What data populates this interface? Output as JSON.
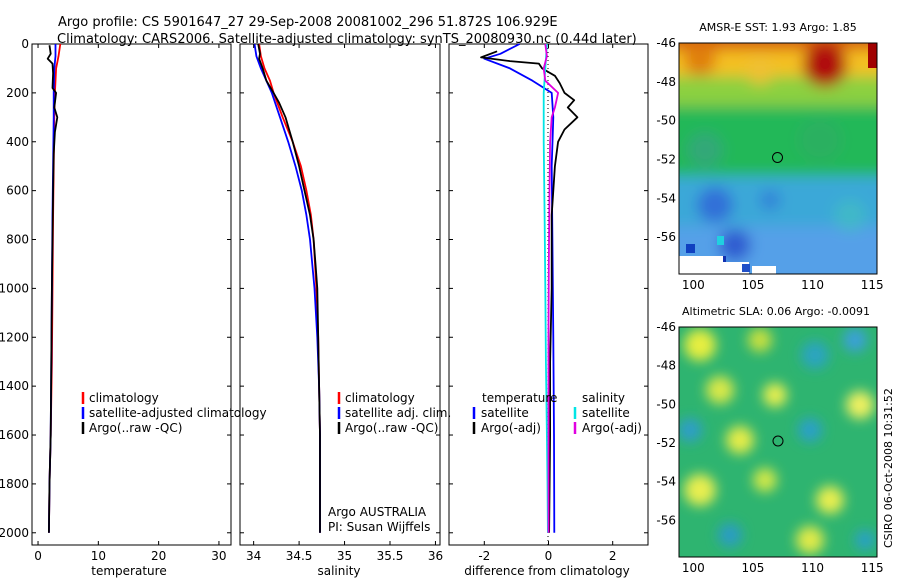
{
  "header": {
    "title_line1": "Argo profile: CS 5901647_27 29-Sep-2008 20081002_296 51.872S 106.929E",
    "title_line2": "Climatology: CARS2006. Satellite-adjusted climatology: synTS_20080930.nc (0.44d later)"
  },
  "side_text": "CSIRO 06-Oct-2008 10:31:52",
  "colors": {
    "climatology": "#ff0000",
    "satellite": "#0000ff",
    "argo": "#000000",
    "satellite_salinity": "#00e5e5",
    "argo_salinity": "#e000e0"
  },
  "chart_data": [
    {
      "type": "line",
      "panel": "temperature",
      "xlabel": "temperature",
      "ylim": [
        2050,
        0
      ],
      "xlim": [
        -1,
        32
      ],
      "xticks": [
        "0",
        "10",
        "20",
        "30"
      ],
      "yticks": [
        "0",
        "200",
        "400",
        "600",
        "800",
        "1000",
        "1200",
        "1400",
        "1600",
        "1800",
        "2000"
      ],
      "legend": [
        "climatology",
        "satellite-adjusted climatology",
        "Argo(..raw -QC)"
      ],
      "series": [
        {
          "name": "climatology",
          "color": "#ff0000",
          "points": [
            [
              3.7,
              0
            ],
            [
              3.4,
              50
            ],
            [
              3.0,
              100
            ],
            [
              2.8,
              200
            ],
            [
              2.7,
              300
            ],
            [
              2.6,
              500
            ],
            [
              2.5,
              700
            ],
            [
              2.4,
              1000
            ],
            [
              2.3,
              1300
            ],
            [
              2.1,
              1600
            ],
            [
              1.9,
              1800
            ],
            [
              1.8,
              2000
            ]
          ]
        },
        {
          "name": "satellite-adjusted climatology",
          "color": "#0000ff",
          "points": [
            [
              2.9,
              0
            ],
            [
              2.9,
              50
            ],
            [
              2.7,
              100
            ],
            [
              2.6,
              200
            ],
            [
              2.6,
              300
            ],
            [
              2.5,
              500
            ],
            [
              2.4,
              700
            ],
            [
              2.3,
              1000
            ],
            [
              2.2,
              1300
            ],
            [
              2.1,
              1600
            ],
            [
              1.9,
              1800
            ],
            [
              1.8,
              2000
            ]
          ]
        },
        {
          "name": "Argo(..raw -QC)",
          "color": "#000000",
          "points": [
            [
              1.9,
              5
            ],
            [
              2.1,
              40
            ],
            [
              1.6,
              60
            ],
            [
              2.4,
              80
            ],
            [
              2.5,
              120
            ],
            [
              2.4,
              180
            ],
            [
              3.0,
              200
            ],
            [
              2.7,
              260
            ],
            [
              3.2,
              300
            ],
            [
              2.8,
              360
            ],
            [
              2.6,
              450
            ],
            [
              2.5,
              600
            ],
            [
              2.4,
              800
            ],
            [
              2.3,
              1000
            ],
            [
              2.2,
              1300
            ],
            [
              2.1,
              1600
            ],
            [
              1.9,
              1800
            ],
            [
              1.8,
              2000
            ]
          ]
        }
      ]
    },
    {
      "type": "line",
      "panel": "salinity",
      "xlabel": "salinity",
      "ylim": [
        2050,
        0
      ],
      "xlim": [
        33.85,
        36.05
      ],
      "xticks": [
        "34",
        "34.5",
        "35",
        "35.5",
        "36"
      ],
      "legend": [
        "climatology",
        "satellite adj. clim.",
        "Argo(..raw -QC)"
      ],
      "annotations": [
        "Argo AUSTRALIA",
        "PI: Susan Wijffels"
      ],
      "series": [
        {
          "name": "climatology",
          "color": "#ff0000",
          "points": [
            [
              34.06,
              0
            ],
            [
              34.08,
              50
            ],
            [
              34.12,
              100
            ],
            [
              34.18,
              150
            ],
            [
              34.22,
              200
            ],
            [
              34.32,
              300
            ],
            [
              34.43,
              400
            ],
            [
              34.52,
              500
            ],
            [
              34.58,
              600
            ],
            [
              34.63,
              700
            ],
            [
              34.66,
              800
            ],
            [
              34.69,
              1000
            ],
            [
              34.71,
              1200
            ],
            [
              34.72,
              1400
            ],
            [
              34.73,
              1600
            ],
            [
              34.73,
              1800
            ],
            [
              34.73,
              2000
            ]
          ]
        },
        {
          "name": "satellite adj. clim.",
          "color": "#0000ff",
          "points": [
            [
              34.01,
              0
            ],
            [
              34.03,
              50
            ],
            [
              34.08,
              100
            ],
            [
              34.14,
              150
            ],
            [
              34.2,
              200
            ],
            [
              34.29,
              300
            ],
            [
              34.38,
              400
            ],
            [
              34.46,
              500
            ],
            [
              34.53,
              600
            ],
            [
              34.58,
              700
            ],
            [
              34.62,
              800
            ],
            [
              34.67,
              1000
            ],
            [
              34.7,
              1200
            ],
            [
              34.72,
              1400
            ],
            [
              34.73,
              1600
            ],
            [
              34.73,
              1800
            ],
            [
              34.73,
              2000
            ]
          ]
        },
        {
          "name": "Argo(..raw -QC)",
          "color": "#000000",
          "points": [
            [
              34.05,
              0
            ],
            [
              34.07,
              40
            ],
            [
              34.06,
              60
            ],
            [
              34.1,
              100
            ],
            [
              34.14,
              150
            ],
            [
              34.22,
              200
            ],
            [
              34.28,
              240
            ],
            [
              34.35,
              300
            ],
            [
              34.43,
              400
            ],
            [
              34.5,
              500
            ],
            [
              34.56,
              600
            ],
            [
              34.62,
              700
            ],
            [
              34.66,
              800
            ],
            [
              34.68,
              900
            ],
            [
              34.7,
              1000
            ],
            [
              34.71,
              1200
            ],
            [
              34.72,
              1400
            ],
            [
              34.73,
              1600
            ],
            [
              34.73,
              1800
            ],
            [
              34.73,
              2000
            ]
          ]
        }
      ]
    },
    {
      "type": "line",
      "panel": "difference",
      "xlabel": "difference from climatology",
      "ylim": [
        2050,
        0
      ],
      "xlim": [
        -3.1,
        3.1
      ],
      "xticks": [
        "-2",
        "0",
        "2"
      ],
      "legend_headers": [
        "temperature",
        "salinity"
      ],
      "legend": [
        "satellite",
        "Argo(-adj)",
        "satellite",
        "Argo(-adj)"
      ],
      "series": [
        {
          "name": "temperature satellite",
          "color": "#0000ff",
          "points": [
            [
              -0.9,
              0
            ],
            [
              -1.5,
              40
            ],
            [
              -2.0,
              60
            ],
            [
              -1.2,
              100
            ],
            [
              -0.5,
              150
            ],
            [
              0.1,
              200
            ],
            [
              0.15,
              300
            ],
            [
              0.1,
              500
            ],
            [
              0.12,
              800
            ],
            [
              0.15,
              1200
            ],
            [
              0.17,
              1600
            ],
            [
              0.18,
              2000
            ]
          ]
        },
        {
          "name": "temperature Argo(-adj)",
          "color": "#000000",
          "points": [
            [
              -1.6,
              30
            ],
            [
              -2.1,
              55
            ],
            [
              -1.2,
              70
            ],
            [
              -0.3,
              80
            ],
            [
              -0.2,
              100
            ],
            [
              0.2,
              130
            ],
            [
              0.35,
              160
            ],
            [
              0.5,
              200
            ],
            [
              0.8,
              230
            ],
            [
              0.6,
              260
            ],
            [
              0.9,
              300
            ],
            [
              0.5,
              350
            ],
            [
              0.3,
              400
            ],
            [
              0.2,
              500
            ],
            [
              0.1,
              700
            ],
            [
              0.1,
              1000
            ],
            [
              0.05,
              1300
            ],
            [
              0.05,
              1600
            ],
            [
              0.02,
              2000
            ]
          ]
        },
        {
          "name": "salinity satellite",
          "color": "#00e5e5",
          "points": [
            [
              -0.05,
              0
            ],
            [
              -0.1,
              100
            ],
            [
              -0.15,
              200
            ],
            [
              -0.15,
              400
            ],
            [
              -0.12,
              700
            ],
            [
              -0.1,
              1000
            ],
            [
              -0.08,
              1300
            ],
            [
              -0.05,
              1600
            ],
            [
              -0.03,
              1800
            ],
            [
              -0.02,
              2000
            ]
          ]
        },
        {
          "name": "salinity Argo(-adj)",
          "color": "#e000e0",
          "points": [
            [
              -0.1,
              0
            ],
            [
              -0.05,
              50
            ],
            [
              -0.15,
              100
            ],
            [
              -0.1,
              150
            ],
            [
              0.3,
              200
            ],
            [
              0.2,
              260
            ],
            [
              0.1,
              300
            ],
            [
              0.05,
              400
            ],
            [
              0.03,
              600
            ],
            [
              0.01,
              900
            ],
            [
              0.0,
              1200
            ],
            [
              0.0,
              1600
            ],
            [
              0.0,
              2000
            ]
          ]
        }
      ]
    },
    {
      "type": "heatmap",
      "panel": "sst_map",
      "title": "AMSR-E SST: 1.93 Argo: 1.85",
      "xlim": [
        98.8,
        115.4
      ],
      "ylim": [
        -57.9,
        -46
      ],
      "xticks": [
        "100",
        "105",
        "110",
        "115"
      ],
      "yticks": [
        "-46",
        "-48",
        "-50",
        "-52",
        "-54",
        "-56"
      ],
      "marker": [
        106.929,
        -51.872
      ]
    },
    {
      "type": "heatmap",
      "panel": "sla_map",
      "title": "Altimetric SLA: 0.06 Argo: -0.0091",
      "xlim": [
        98.8,
        115.4
      ],
      "ylim": [
        -57.9,
        -46
      ],
      "xticks": [
        "100",
        "105",
        "110",
        "115"
      ],
      "yticks": [
        "-46",
        "-48",
        "-50",
        "-52",
        "-54",
        "-56"
      ],
      "marker": [
        106.929,
        -51.872
      ]
    }
  ]
}
